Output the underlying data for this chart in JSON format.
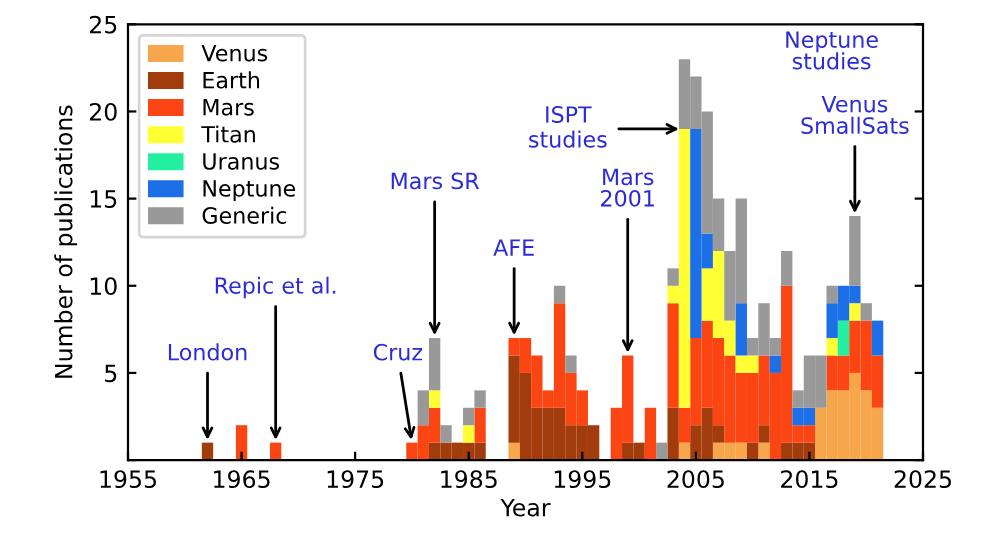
{
  "chart_data": {
    "type": "bar",
    "stacked": true,
    "xlabel": "Year",
    "ylabel": "Number of publications",
    "x": [
      1962,
      1963,
      1964,
      1965,
      1966,
      1967,
      1968,
      1969,
      1970,
      1971,
      1972,
      1973,
      1974,
      1975,
      1976,
      1977,
      1978,
      1979,
      1980,
      1981,
      1982,
      1983,
      1984,
      1985,
      1986,
      1987,
      1988,
      1989,
      1990,
      1991,
      1992,
      1993,
      1994,
      1995,
      1996,
      1997,
      1998,
      1999,
      2000,
      2001,
      2002,
      2003,
      2004,
      2005,
      2006,
      2007,
      2008,
      2009,
      2010,
      2011,
      2012,
      2013,
      2014,
      2015,
      2016,
      2017,
      2018,
      2019,
      2020,
      2021
    ],
    "series": [
      {
        "name": "Venus",
        "color": "#f7a64c",
        "values": [
          0,
          0,
          0,
          0,
          0,
          0,
          0,
          0,
          0,
          0,
          0,
          0,
          0,
          0,
          0,
          0,
          0,
          0,
          0,
          0,
          0,
          0,
          0,
          0,
          0,
          0,
          0,
          1,
          0,
          0,
          0,
          0,
          0,
          0,
          0,
          0,
          0,
          0,
          0,
          0,
          0,
          0,
          1,
          0,
          0,
          1,
          1,
          1,
          0,
          1,
          0,
          0,
          0,
          0,
          3,
          4,
          4,
          5,
          4,
          3
        ]
      },
      {
        "name": "Earth",
        "color": "#a33c0c",
        "values": [
          1,
          0,
          0,
          0,
          0,
          0,
          0,
          0,
          0,
          0,
          0,
          0,
          0,
          0,
          0,
          0,
          0,
          0,
          0,
          0,
          1,
          1,
          1,
          1,
          1,
          0,
          0,
          5,
          5,
          3,
          3,
          3,
          2,
          2,
          2,
          0,
          0,
          1,
          1,
          0,
          0,
          3,
          0,
          2,
          3,
          1,
          0,
          0,
          1,
          1,
          0,
          1,
          1,
          1,
          0,
          0,
          0,
          0,
          0,
          0
        ]
      },
      {
        "name": "Mars",
        "color": "#fb4512",
        "values": [
          0,
          0,
          0,
          2,
          0,
          0,
          1,
          0,
          0,
          0,
          0,
          0,
          0,
          0,
          0,
          0,
          0,
          0,
          1,
          2,
          2,
          0,
          0,
          0,
          2,
          0,
          0,
          1,
          2,
          3,
          1,
          6,
          3,
          2,
          0,
          0,
          3,
          5,
          0,
          3,
          0,
          6,
          2,
          5,
          5,
          5,
          5,
          4,
          4,
          4,
          5,
          9,
          1,
          1,
          0,
          2,
          2,
          3,
          4,
          3
        ]
      },
      {
        "name": "Titan",
        "color": "#ffff33",
        "values": [
          0,
          0,
          0,
          0,
          0,
          0,
          0,
          0,
          0,
          0,
          0,
          0,
          0,
          0,
          0,
          0,
          0,
          0,
          0,
          0,
          1,
          0,
          0,
          1,
          0,
          0,
          0,
          0,
          0,
          0,
          0,
          0,
          0,
          0,
          0,
          0,
          0,
          0,
          0,
          0,
          0,
          1,
          16,
          0,
          3,
          5,
          2,
          1,
          1,
          0,
          0,
          0,
          0,
          0,
          0,
          1,
          0,
          1,
          0,
          0
        ]
      },
      {
        "name": "Uranus",
        "color": "#22f0a0",
        "values": [
          0,
          0,
          0,
          0,
          0,
          0,
          0,
          0,
          0,
          0,
          0,
          0,
          0,
          0,
          0,
          0,
          0,
          0,
          0,
          0,
          0,
          0,
          0,
          0,
          0,
          0,
          0,
          0,
          0,
          0,
          0,
          0,
          0,
          0,
          0,
          0,
          0,
          0,
          0,
          0,
          0,
          0,
          0,
          0,
          0,
          0,
          0,
          0,
          0,
          0,
          0,
          0,
          0,
          0,
          0,
          0,
          2,
          0,
          0,
          0
        ]
      },
      {
        "name": "Neptune",
        "color": "#1c6fe6",
        "values": [
          0,
          0,
          0,
          0,
          0,
          0,
          0,
          0,
          0,
          0,
          0,
          0,
          0,
          0,
          0,
          0,
          0,
          0,
          0,
          0,
          0,
          0,
          0,
          0,
          0,
          0,
          0,
          0,
          0,
          0,
          0,
          0,
          0,
          0,
          0,
          0,
          0,
          0,
          0,
          0,
          0,
          0,
          0,
          12,
          2,
          0,
          0,
          3,
          0,
          0,
          1,
          0,
          1,
          1,
          0,
          2,
          2,
          1,
          0,
          2
        ]
      },
      {
        "name": "Generic",
        "color": "#999999",
        "values": [
          0,
          0,
          0,
          0,
          0,
          0,
          0,
          0,
          0,
          0,
          0,
          0,
          0,
          0,
          0,
          0,
          0,
          0,
          0,
          2,
          3,
          1,
          0,
          1,
          1,
          0,
          0,
          0,
          0,
          0,
          0,
          1,
          1,
          0,
          0,
          0,
          0,
          0,
          0,
          0,
          1,
          1,
          4,
          3,
          7,
          3,
          4,
          6,
          1,
          3,
          1,
          2,
          1,
          3,
          3,
          1,
          0,
          4,
          1,
          0
        ]
      }
    ],
    "xlim": [
      1955,
      2025
    ],
    "xticks": [
      1955,
      1965,
      1975,
      1985,
      1995,
      2005,
      2015,
      2025
    ],
    "ylim": [
      0,
      25
    ],
    "yticks": [
      {
        "value": 0,
        "label": null
      },
      5,
      10,
      15,
      20,
      25
    ],
    "legend": "top left",
    "grid": false,
    "annotations": [
      {
        "text": "London",
        "x": 1962,
        "y": 1
      },
      {
        "text": "Repic et al.",
        "x": 1968,
        "y": 1
      },
      {
        "text": "Cruz",
        "x": 1980,
        "y": 1
      },
      {
        "text": "Mars SR",
        "x": 1982,
        "y": 7
      },
      {
        "text": "AFE",
        "x": 1989,
        "y": 7
      },
      {
        "text": "Mars\n2001",
        "x": 1999,
        "y": 6
      },
      {
        "text": "Venus\nSmallSats",
        "x": 2019,
        "y": 14
      },
      {
        "text": "ISPT\nstudies",
        "x": 2004,
        "y": 19
      },
      "Neptune\nstudies"
    ]
  }
}
